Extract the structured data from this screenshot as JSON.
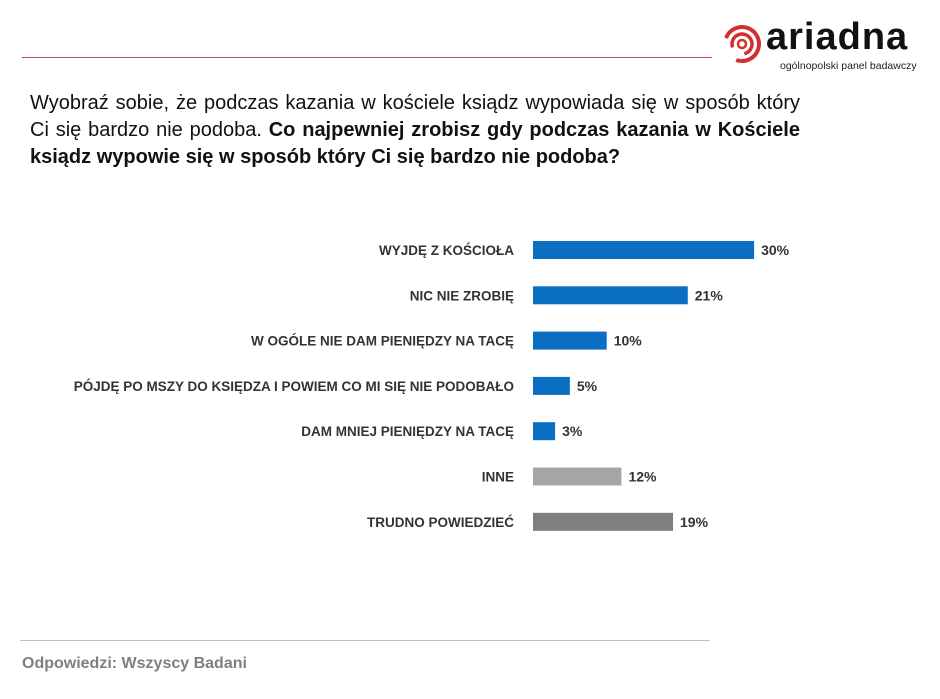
{
  "logo": {
    "word": "ariadna",
    "tagline": "ogólnopolski panel badawczy",
    "color": "#d32f2f"
  },
  "question": {
    "intro": "Wyobraź sobie, że podczas kazania w kościele ksiądz wypowiada się w sposób który Ci się bardzo nie podoba.",
    "bold": "Co najpewniej zrobisz gdy podczas kazania w Kościele ksiądz wypowie się w sposób który Ci się bardzo nie podoba?"
  },
  "chart_data": {
    "type": "bar",
    "orientation": "horizontal",
    "categories": [
      "WYJDĘ Z KOŚCIOŁA",
      "NIC NIE ZROBIĘ",
      "W OGÓLE NIE DAM PIENIĘDZY NA TACĘ",
      "PÓJDĘ PO MSZY DO KSIĘDZA I POWIEM CO MI SIĘ NIE PODOBAŁO",
      "DAM MNIEJ PIENIĘDZY NA TACĘ",
      "INNE",
      "TRUDNO POWIEDZIEĆ"
    ],
    "values": [
      30,
      21,
      10,
      5,
      3,
      12,
      19
    ],
    "labels": [
      "30%",
      "21%",
      "10%",
      "5%",
      "3%",
      "12%",
      "19%"
    ],
    "colors": [
      "#0a6fc2",
      "#0a6fc2",
      "#0a6fc2",
      "#0a6fc2",
      "#0a6fc2",
      "#a6a6a6",
      "#7f7f7f"
    ],
    "unit": "%",
    "grid": false
  },
  "footer": "Odpowiedzi: Wszyscy Badani"
}
